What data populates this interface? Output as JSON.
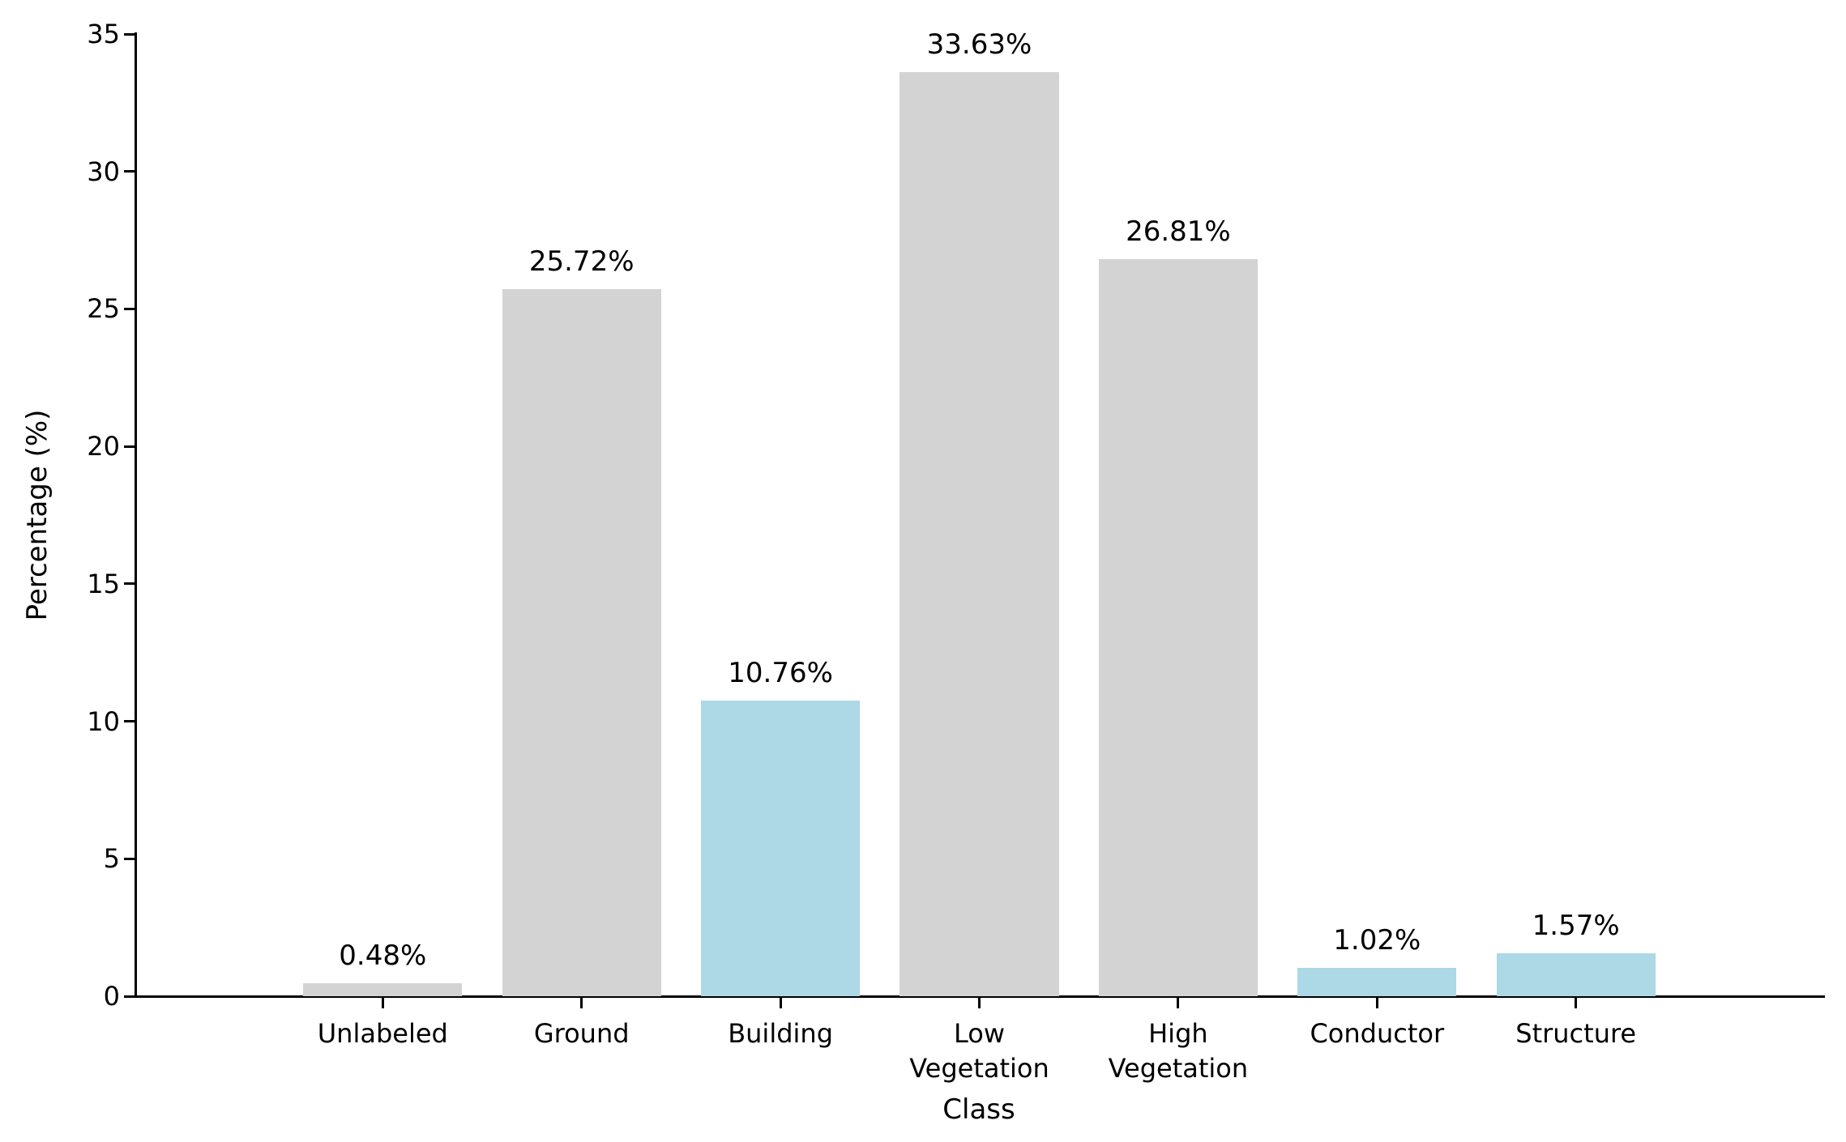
{
  "chart_data": {
    "type": "bar",
    "title": "",
    "xlabel": "Class",
    "ylabel": "Percentage (%)",
    "categories": [
      "Unlabeled",
      "Ground",
      "Building",
      "Low\nVegetation",
      "High\nVegetation",
      "Conductor",
      "Structure"
    ],
    "values": [
      0.48,
      25.72,
      10.76,
      33.63,
      26.81,
      1.02,
      1.57
    ],
    "bar_labels": [
      "0.48%",
      "25.72%",
      "10.76%",
      "33.63%",
      "26.81%",
      "1.02%",
      "1.57%"
    ],
    "bar_colors": [
      "#d3d3d3",
      "#d3d3d3",
      "#add8e6",
      "#d3d3d3",
      "#d3d3d3",
      "#add8e6",
      "#add8e6"
    ],
    "yticks": [
      0,
      5,
      10,
      15,
      20,
      25,
      30,
      35
    ],
    "ylim": [
      0,
      35
    ],
    "grid": false,
    "legend": null
  },
  "colors": {
    "bar_gray": "#d3d3d3",
    "bar_blue": "#add8e6",
    "axis": "#000000",
    "text": "#000000",
    "background": "#ffffff"
  }
}
